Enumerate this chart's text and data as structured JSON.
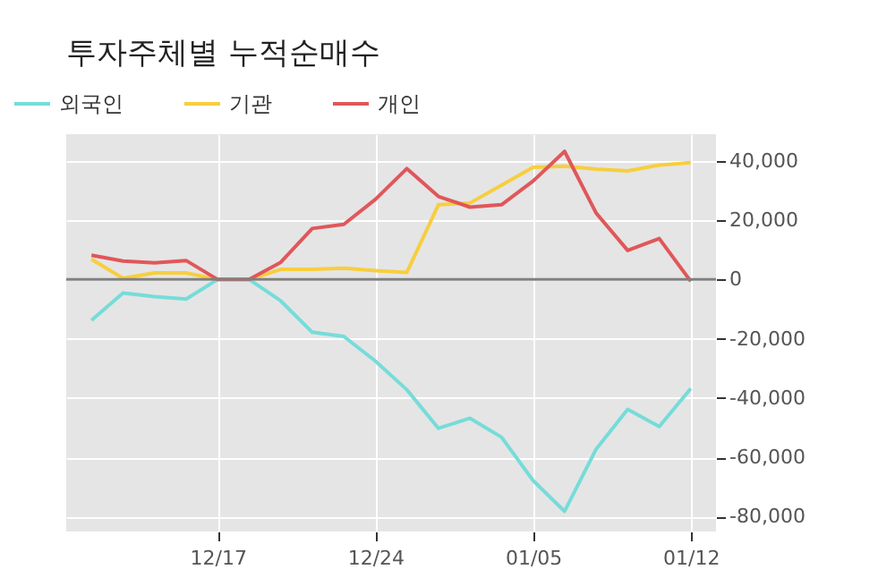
{
  "chart_data": {
    "type": "line",
    "title": "투자주체별 누적순매수",
    "categories": [
      null,
      null,
      null,
      null,
      "12/17",
      null,
      null,
      null,
      null,
      "12/24",
      null,
      null,
      null,
      null,
      "01/05",
      null,
      null,
      null,
      null,
      "01/12"
    ],
    "series": [
      {
        "name": "외국인",
        "color": "#76dcd9",
        "values": [
          -13800,
          -4600,
          -5800,
          -6600,
          0,
          0,
          -7200,
          -17800,
          -19200,
          -27500,
          -37200,
          -50200,
          -46800,
          -53200,
          -67800,
          -78200,
          -57200,
          -43800,
          -49600,
          -36800
        ]
      },
      {
        "name": "기관",
        "color": "#f7ce3e",
        "values": [
          6800,
          400,
          2200,
          2200,
          0,
          0,
          3400,
          3400,
          3800,
          3000,
          2400,
          25200,
          25800,
          31800,
          37800,
          38200,
          37200,
          36600,
          38600,
          39400
        ]
      },
      {
        "name": "개인",
        "color": "#e0575a",
        "values": [
          8200,
          6200,
          5600,
          6400,
          0,
          0,
          5800,
          17200,
          18600,
          27000,
          37400,
          28000,
          24400,
          25200,
          33200,
          43200,
          22400,
          9800,
          13800,
          -600
        ]
      }
    ],
    "ylim": [
      -85000,
      49000
    ],
    "yticks": [
      {
        "value": -80000,
        "label": "-80,000"
      },
      {
        "value": -60000,
        "label": "-60,000"
      },
      {
        "value": -40000,
        "label": "-40,000"
      },
      {
        "value": -20000,
        "label": "-20,000"
      },
      0,
      {
        "value": 20000,
        "label": "20,000"
      },
      {
        "value": 40000,
        "label": "40,000"
      }
    ],
    "ref_lines": [
      {
        "axis": "y",
        "value": 0,
        "color": "#808080"
      }
    ],
    "grid": true,
    "legend": "top left",
    "marker": "none",
    "line_style": "solid"
  }
}
